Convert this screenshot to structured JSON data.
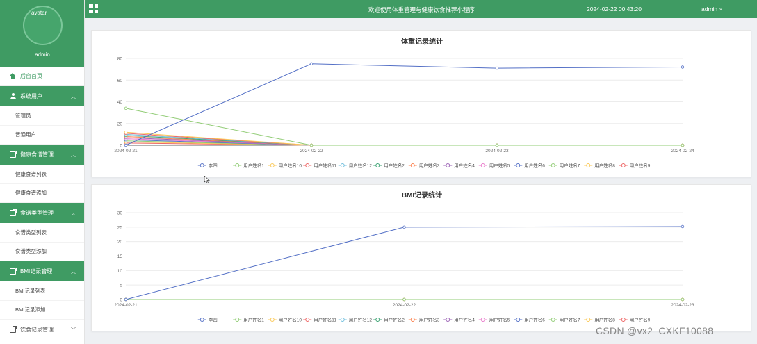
{
  "sidebar": {
    "avatar_text": "avatar",
    "username": "admin",
    "home": "后台首页",
    "groups": [
      {
        "label": "系统用户",
        "expanded": true,
        "icon": "user-icon",
        "items": [
          "管理员",
          "普通用户"
        ]
      },
      {
        "label": "健康食谱管理",
        "expanded": true,
        "icon": "doc-icon",
        "items": [
          "健康食谱列表",
          "健康食谱添加"
        ]
      },
      {
        "label": "食谱类型管理",
        "expanded": true,
        "icon": "doc-icon",
        "items": [
          "食谱类型列表",
          "食谱类型添加"
        ]
      },
      {
        "label": "BMI记录管理",
        "expanded": true,
        "icon": "doc-icon",
        "items": [
          "BMI记录列表",
          "BMI记录添加"
        ]
      },
      {
        "label": "饮食记录管理",
        "expanded": false,
        "icon": "doc-icon",
        "items": []
      }
    ]
  },
  "header": {
    "title": "欢迎使用体重管理与健康饮食推荐小程序",
    "datetime": "2024-02-22 00:43:20",
    "user": "admin"
  },
  "colors": {
    "primary": "#3f9b63",
    "series": [
      "#5470c6",
      "#91cc75",
      "#fac858",
      "#ee6666",
      "#73c0de",
      "#3ba272",
      "#fc8452",
      "#9a60b4",
      "#ea7ccc",
      "#5470c6",
      "#91cc75",
      "#fac858",
      "#ee6666"
    ]
  },
  "watermark": "CSDN @vx2_CXKF10088",
  "chart_data": [
    {
      "type": "line",
      "title": "体重记录统计",
      "categories": [
        "2024-02-21",
        "2024-02-22",
        "2024-02-23",
        "2024-02-24"
      ],
      "ylim": [
        0,
        80
      ],
      "yticks": [
        0,
        20,
        40,
        60,
        80
      ],
      "grid": true,
      "legend": "bottom",
      "series": [
        {
          "name": "李四",
          "values": [
            0,
            75,
            71,
            72
          ]
        },
        {
          "name": "用户姓名1",
          "values": [
            34,
            0,
            0,
            0
          ]
        },
        {
          "name": "用户姓名10",
          "values": [
            12,
            0,
            0,
            0
          ]
        },
        {
          "name": "用户姓名11",
          "values": [
            11,
            0,
            0,
            0
          ]
        },
        {
          "name": "用户姓名12",
          "values": [
            10,
            0,
            0,
            0
          ]
        },
        {
          "name": "用户姓名2",
          "values": [
            9,
            0,
            0,
            0
          ]
        },
        {
          "name": "用户姓名3",
          "values": [
            8,
            0,
            0,
            0
          ]
        },
        {
          "name": "用户姓名4",
          "values": [
            7,
            0,
            0,
            0
          ]
        },
        {
          "name": "用户姓名5",
          "values": [
            6,
            0,
            0,
            0
          ]
        },
        {
          "name": "用户姓名6",
          "values": [
            5,
            0,
            0,
            0
          ]
        },
        {
          "name": "用户姓名7",
          "values": [
            4,
            0,
            0,
            0
          ]
        },
        {
          "name": "用户姓名8",
          "values": [
            3,
            0,
            0,
            0
          ]
        },
        {
          "name": "用户姓名9",
          "values": [
            2,
            0,
            0,
            0
          ]
        }
      ]
    },
    {
      "type": "line",
      "title": "BMI记录统计",
      "categories": [
        "2024-02-21",
        "2024-02-22",
        "2024-02-23"
      ],
      "ylim": [
        0,
        30
      ],
      "yticks": [
        0,
        5,
        10,
        15,
        20,
        25,
        30
      ],
      "grid": true,
      "legend": "bottom",
      "series": [
        {
          "name": "李四",
          "values": [
            0,
            25,
            25.2
          ]
        },
        {
          "name": "用户姓名1",
          "values": [
            0,
            0,
            0
          ]
        },
        {
          "name": "用户姓名10",
          "values": [
            0,
            0,
            0
          ]
        },
        {
          "name": "用户姓名11",
          "values": [
            0,
            0,
            0
          ]
        },
        {
          "name": "用户姓名12",
          "values": [
            0,
            0,
            0
          ]
        },
        {
          "name": "用户姓名2",
          "values": [
            0,
            0,
            0
          ]
        },
        {
          "name": "用户姓名3",
          "values": [
            0,
            0,
            0
          ]
        },
        {
          "name": "用户姓名4",
          "values": [
            0,
            0,
            0
          ]
        },
        {
          "name": "用户姓名5",
          "values": [
            0,
            0,
            0
          ]
        },
        {
          "name": "用户姓名6",
          "values": [
            0,
            0,
            0
          ]
        },
        {
          "name": "用户姓名7",
          "values": [
            0,
            0,
            0
          ]
        },
        {
          "name": "用户姓名8",
          "values": [
            0,
            0,
            0
          ]
        },
        {
          "name": "用户姓名9",
          "values": [
            0,
            0,
            0
          ]
        }
      ]
    }
  ]
}
